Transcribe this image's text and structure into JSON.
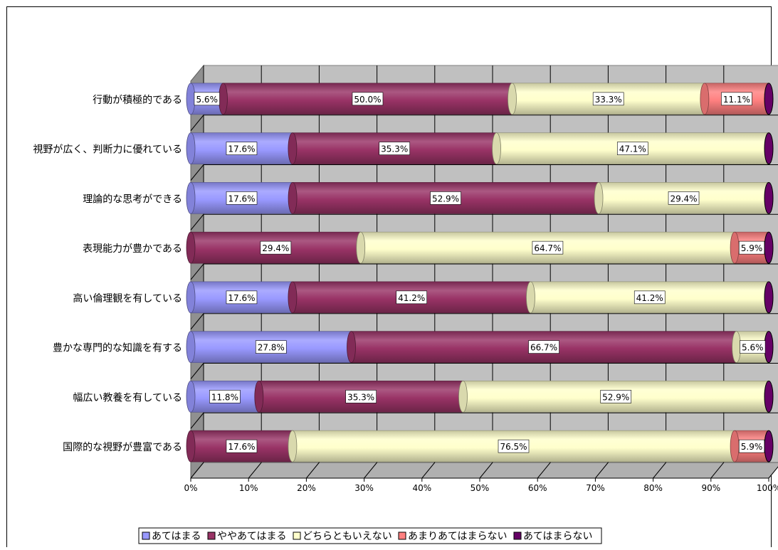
{
  "chart_data": {
    "type": "bar",
    "orientation": "horizontal",
    "stacked": "percent",
    "three_d": true,
    "categories": [
      "行動が積極的である",
      "視野が広く、判断力に優れている",
      "理論的な思考ができる",
      "表現能力が豊かである",
      "高い倫理観を有している",
      "豊かな専門的な知識を有する",
      "幅広い教養を有している",
      "国際的な視野が豊富である"
    ],
    "series": [
      {
        "name": "あてはまる",
        "color": "#9999ff",
        "values": [
          5.6,
          17.6,
          17.6,
          0,
          17.6,
          27.8,
          11.8,
          0
        ]
      },
      {
        "name": "ややあてはまる",
        "color": "#993366",
        "values": [
          50.0,
          35.3,
          52.9,
          29.4,
          41.2,
          66.7,
          35.3,
          17.6
        ]
      },
      {
        "name": "どちらともいえない",
        "color": "#ffffcc",
        "values": [
          33.3,
          47.1,
          29.4,
          64.7,
          41.2,
          5.6,
          52.9,
          76.5
        ]
      },
      {
        "name": "あまりあてはまらない",
        "color": "#ff8080",
        "values": [
          11.1,
          0,
          0,
          5.9,
          0,
          0,
          0,
          5.9
        ]
      },
      {
        "name": "あてはまらない",
        "color": "#660066",
        "values": [
          0,
          0,
          0,
          0,
          0,
          0,
          0,
          0
        ]
      }
    ],
    "data_labels": [
      [
        "5.6%",
        "50.0%",
        "33.3%",
        "11.1%",
        ""
      ],
      [
        "17.6%",
        "35.3%",
        "47.1%",
        "",
        ""
      ],
      [
        "17.6%",
        "52.9%",
        "29.4%",
        "",
        ""
      ],
      [
        "",
        "29.4%",
        "64.7%",
        "5.9%",
        ""
      ],
      [
        "17.6%",
        "41.2%",
        "41.2%",
        "",
        ""
      ],
      [
        "27.8%",
        "66.7%",
        "5.6%",
        "",
        ""
      ],
      [
        "11.8%",
        "35.3%",
        "52.9%",
        "",
        ""
      ],
      [
        "",
        "17.6%",
        "76.5%",
        "5.9%",
        ""
      ]
    ],
    "x_ticks": [
      "0%",
      "10%",
      "20%",
      "30%",
      "40%",
      "50%",
      "60%",
      "70%",
      "80%",
      "90%",
      "100%"
    ],
    "xlim": [
      0,
      100
    ],
    "grid": true,
    "legend_position": "bottom",
    "title": "",
    "xlabel": "",
    "ylabel": ""
  }
}
